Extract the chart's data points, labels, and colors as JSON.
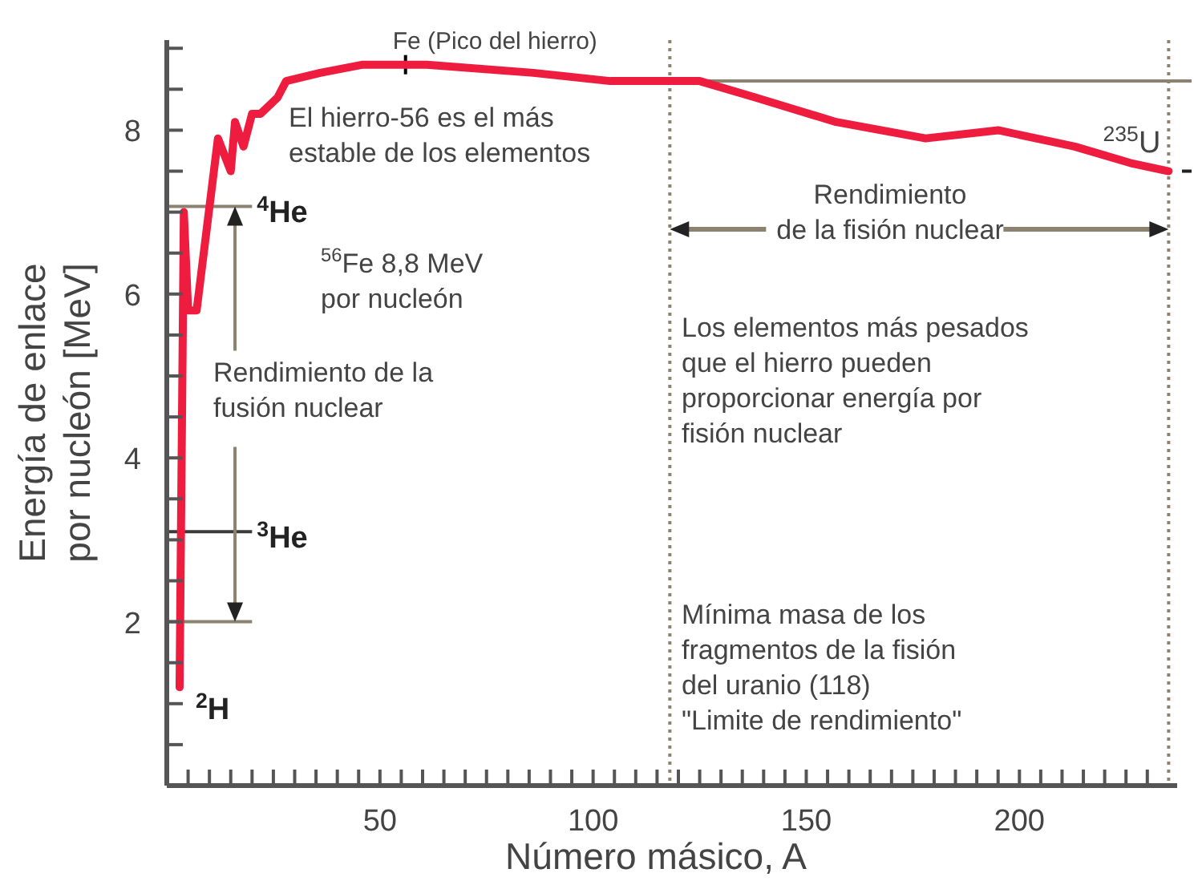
{
  "chart_data": {
    "type": "line",
    "xlabel": "Número másico, A",
    "ylabel": "Energía de enlace\npor nucleón [MeV]",
    "xlim": [
      0,
      237
    ],
    "ylim": [
      0,
      9.1
    ],
    "xticks": [
      {
        "value": 5,
        "label": null
      },
      {
        "value": 10,
        "label": null
      },
      {
        "value": 15,
        "label": null
      },
      {
        "value": 20,
        "label": null
      },
      {
        "value": 25,
        "label": null
      },
      {
        "value": 30,
        "label": null
      },
      {
        "value": 35,
        "label": null
      },
      {
        "value": 40,
        "label": null
      },
      {
        "value": 45,
        "label": null
      },
      50,
      {
        "value": 55,
        "label": null
      },
      {
        "value": 60,
        "label": null
      },
      {
        "value": 65,
        "label": null
      },
      {
        "value": 70,
        "label": null
      },
      {
        "value": 75,
        "label": null
      },
      {
        "value": 80,
        "label": null
      },
      {
        "value": 85,
        "label": null
      },
      {
        "value": 90,
        "label": null
      },
      {
        "value": 95,
        "label": null
      },
      100,
      {
        "value": 105,
        "label": null
      },
      {
        "value": 110,
        "label": null
      },
      {
        "value": 115,
        "label": null
      },
      {
        "value": 120,
        "label": null
      },
      {
        "value": 125,
        "label": null
      },
      {
        "value": 130,
        "label": null
      },
      {
        "value": 135,
        "label": null
      },
      {
        "value": 140,
        "label": null
      },
      {
        "value": 145,
        "label": null
      },
      150,
      {
        "value": 155,
        "label": null
      },
      {
        "value": 160,
        "label": null
      },
      {
        "value": 165,
        "label": null
      },
      {
        "value": 170,
        "label": null
      },
      {
        "value": 175,
        "label": null
      },
      {
        "value": 180,
        "label": null
      },
      {
        "value": 185,
        "label": null
      },
      {
        "value": 190,
        "label": null
      },
      {
        "value": 195,
        "label": null
      },
      200,
      {
        "value": 205,
        "label": null
      },
      {
        "value": 210,
        "label": null
      },
      {
        "value": 215,
        "label": null
      },
      {
        "value": 220,
        "label": null
      },
      {
        "value": 225,
        "label": null
      },
      {
        "value": 230,
        "label": null
      }
    ],
    "yticks": [
      {
        "value": 0.5,
        "label": null
      },
      {
        "value": 1,
        "label": null
      },
      {
        "value": 1.5,
        "label": null
      },
      2,
      {
        "value": 2.5,
        "label": null
      },
      {
        "value": 3,
        "label": null
      },
      {
        "value": 3.5,
        "label": null
      },
      4,
      {
        "value": 4.5,
        "label": null
      },
      {
        "value": 5,
        "label": null
      },
      {
        "value": 5.5,
        "label": null
      },
      6,
      {
        "value": 6.5,
        "label": null
      },
      {
        "value": 7,
        "label": null
      },
      {
        "value": 7.5,
        "label": null
      },
      8,
      {
        "value": 8.5,
        "label": null
      },
      {
        "value": 9,
        "label": null
      }
    ],
    "marker": "none",
    "line_style": "solid",
    "series": [
      {
        "color": "#ee1c3e",
        "x": [
          3,
          4,
          5,
          7,
          12,
          15,
          16,
          18,
          20,
          22,
          26,
          28,
          36,
          46,
          56,
          61,
          86,
          104,
          125,
          138,
          157,
          178,
          195,
          213,
          226,
          235
        ],
        "values": [
          1.2,
          7.0,
          5.8,
          5.8,
          7.9,
          7.5,
          8.1,
          7.8,
          8.2,
          8.2,
          8.4,
          8.6,
          8.7,
          8.8,
          8.8,
          8.8,
          8.7,
          8.6,
          8.6,
          8.4,
          8.1,
          7.9,
          8.0,
          7.8,
          7.6,
          7.5
        ]
      }
    ],
    "ref_lines": [
      {
        "axis": "y",
        "value": 7.07,
        "label": "$^{4}$He",
        "color": "#8c8270"
      },
      {
        "axis": "y",
        "value": 3.1,
        "label": "$^{3}$He",
        "color": "#3a3a3a"
      },
      {
        "axis": "y",
        "value": 2,
        "color": "#8c8270"
      },
      {
        "axis": "x",
        "value": 118,
        "color": "#8c8270",
        "line_style": "dotted"
      },
      {
        "axis": "x",
        "value": 235,
        "color": "#8c8270",
        "line_style": "dotted"
      },
      {
        "axis": "y",
        "value": 8.6,
        "color": "#8c8270"
      }
    ],
    "annotations": [
      {
        "text": "Fe (Pico del hierro)",
        "x": 56,
        "y": 8.8
      },
      "El hierro-56 es el más\nestable de los elementos",
      "$^{56}$Fe 8,8 MeV\npor nucleón",
      "Los elementos más pesados\nque el hierro pueden\nproporcionar energía por\nfisión nuclear",
      "Mínima masa de los\nfragmentos de la fisión\ndel uranio (118)\n\"Limite de rendimiento\"",
      {
        "text": "$^{2}$H",
        "x": 3,
        "y": 1.2
      },
      {
        "text": "$^{235}$U",
        "x": 235,
        "y": 7.5
      },
      "Rendimiento de la\nfusión nuclear",
      "Rendimiento\nde la fisión nuclear"
    ]
  }
}
